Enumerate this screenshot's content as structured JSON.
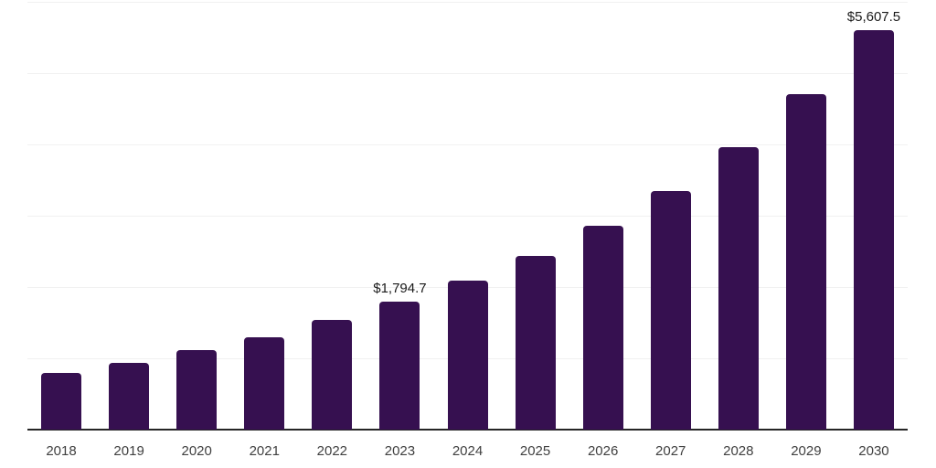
{
  "chart_data": {
    "type": "bar",
    "title": "",
    "xlabel": "",
    "ylabel": "",
    "categories": [
      "2018",
      "2019",
      "2020",
      "2021",
      "2022",
      "2023",
      "2024",
      "2025",
      "2026",
      "2027",
      "2028",
      "2029",
      "2030"
    ],
    "values": [
      795,
      935,
      1110,
      1300,
      1535,
      1794.7,
      2085,
      2430,
      2860,
      3345,
      3960,
      4700,
      5607.5
    ],
    "value_labels": {
      "2023": "$1,794.7",
      "2030": "$5,607.5"
    },
    "ylim": [
      0,
      6000
    ],
    "gridline_step": 1000,
    "grid": "horizontal",
    "legend": "none",
    "colors": {
      "bar": "#361050",
      "axis": "#262626",
      "gridline": "#f1f1f1",
      "tick_label": "#404040",
      "value_label": "#1a1a1a",
      "background": "#ffffff"
    }
  }
}
